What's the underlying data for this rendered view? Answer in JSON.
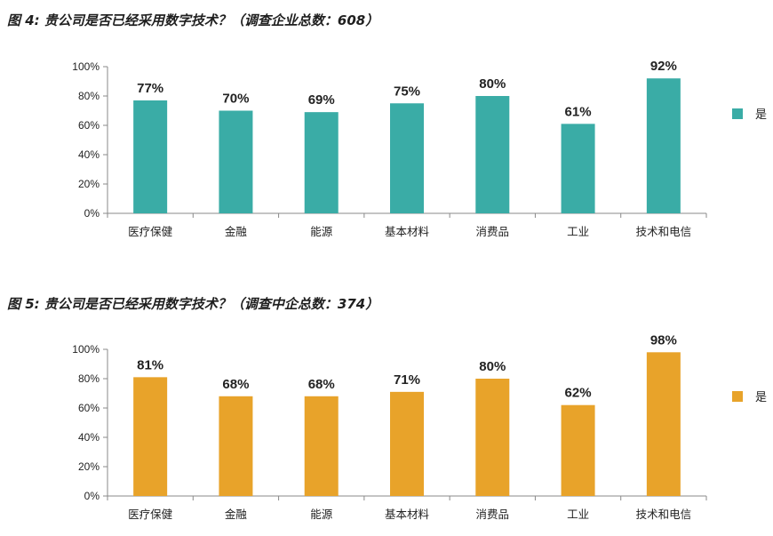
{
  "chart_data": [
    {
      "type": "bar",
      "title": "图 4: 贵公司是否已经采用数字技术？（调查企业总数：608）",
      "categories": [
        "医疗保健",
        "金融",
        "能源",
        "基本材料",
        "消费品",
        "工业",
        "技术和电信"
      ],
      "series": [
        {
          "name": "是",
          "values": [
            77,
            70,
            69,
            75,
            80,
            61,
            92
          ]
        }
      ],
      "value_format": "percent",
      "ylim": [
        0,
        100
      ],
      "yticks": [
        "0%",
        "20%",
        "40%",
        "60%",
        "80%",
        "100%"
      ],
      "legend_position": "right",
      "color": "#3AACA6"
    },
    {
      "type": "bar",
      "title": "图 5: 贵公司是否已经采用数字技术？（调查中企总数：374）",
      "categories": [
        "医疗保健",
        "金融",
        "能源",
        "基本材料",
        "消费品",
        "工业",
        "技术和电信"
      ],
      "series": [
        {
          "name": "是",
          "values": [
            81,
            68,
            68,
            71,
            80,
            62,
            98
          ]
        }
      ],
      "value_format": "percent",
      "ylim": [
        0,
        100
      ],
      "yticks": [
        "0%",
        "20%",
        "40%",
        "60%",
        "80%",
        "100%"
      ],
      "legend_position": "right",
      "color": "#E8A32A"
    }
  ]
}
